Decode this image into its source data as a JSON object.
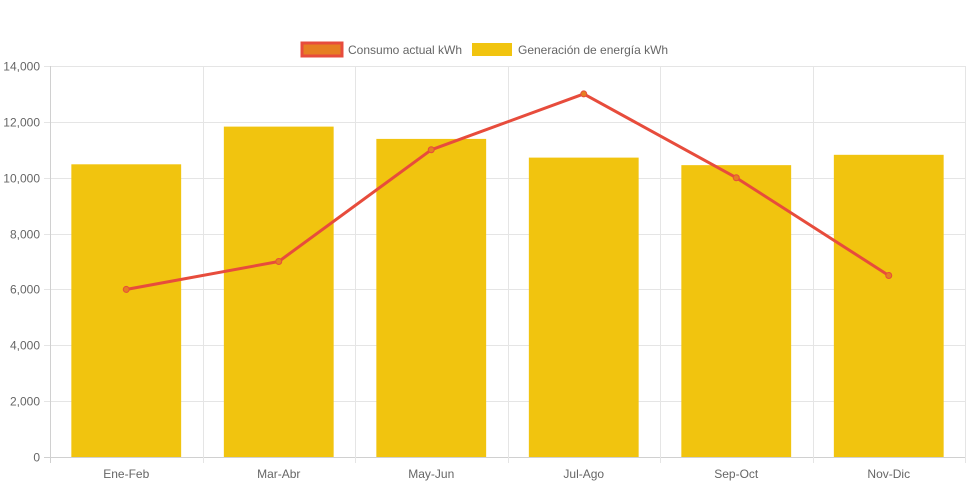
{
  "chart_data": {
    "type": "bar",
    "categories": [
      "Ene-Feb",
      "Mar-Abr",
      "May-Jun",
      "Jul-Ago",
      "Sep-Oct",
      "Nov-Dic"
    ],
    "series": [
      {
        "name": "Consumo actual kWh",
        "render": "line",
        "values": [
          6000,
          7000,
          11000,
          13000,
          10000,
          6500
        ],
        "color": "#e74c3c",
        "legend_fill": "#e67e22"
      },
      {
        "name": "Generación de energía kWh",
        "render": "bar",
        "values": [
          10480,
          11830,
          11390,
          10720,
          10450,
          10820
        ],
        "color": "#f1c40f"
      }
    ],
    "ylim": [
      0,
      14000
    ],
    "yticks": [
      "0",
      "2,000",
      "4,000",
      "6,000",
      "8,000",
      "10,000",
      "12,000",
      "14,000"
    ],
    "ytick_values": [
      0,
      2000,
      4000,
      6000,
      8000,
      10000,
      12000,
      14000
    ],
    "grid": true,
    "legend_position": "top-center",
    "title": "",
    "xlabel": "",
    "ylabel": ""
  }
}
